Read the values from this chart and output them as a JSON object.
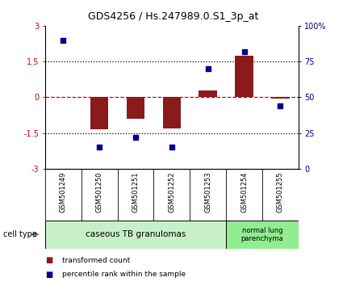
{
  "title": "GDS4256 / Hs.247989.0.S1_3p_at",
  "samples": [
    "GSM501249",
    "GSM501250",
    "GSM501251",
    "GSM501252",
    "GSM501253",
    "GSM501254",
    "GSM501255"
  ],
  "transformed_count": [
    0.0,
    -1.35,
    -0.9,
    -1.3,
    0.3,
    1.75,
    -0.05
  ],
  "percentile_rank": [
    90,
    15,
    22,
    15,
    70,
    82,
    44
  ],
  "ylim_left": [
    -3,
    3
  ],
  "yticks_left": [
    -3,
    -1.5,
    0,
    1.5,
    3
  ],
  "ytick_labels_left": [
    "-3",
    "-1.5",
    "0",
    "1.5",
    "3"
  ],
  "ylim_right": [
    0,
    100
  ],
  "yticks_right": [
    0,
    25,
    50,
    75,
    100
  ],
  "ytick_labels_right": [
    "0",
    "25",
    "50",
    "75",
    "100%"
  ],
  "bar_color": "#8B1A1A",
  "scatter_color": "#00008B",
  "hline_color": "#CC0000",
  "dotted_color": "#000000",
  "cell_types": [
    {
      "label": "caseous TB granulomas",
      "samples_range": [
        0,
        4
      ],
      "color": "#c8f0c8"
    },
    {
      "label": "normal lung\nparenchyma",
      "samples_range": [
        5,
        6
      ],
      "color": "#90EE90"
    }
  ],
  "cell_type_label": "cell type",
  "legend_items": [
    {
      "color": "#8B1A1A",
      "label": "transformed count"
    },
    {
      "color": "#00008B",
      "label": "percentile rank within the sample"
    }
  ],
  "bg_color": "#ffffff",
  "sample_box_color": "#c8c8c8"
}
